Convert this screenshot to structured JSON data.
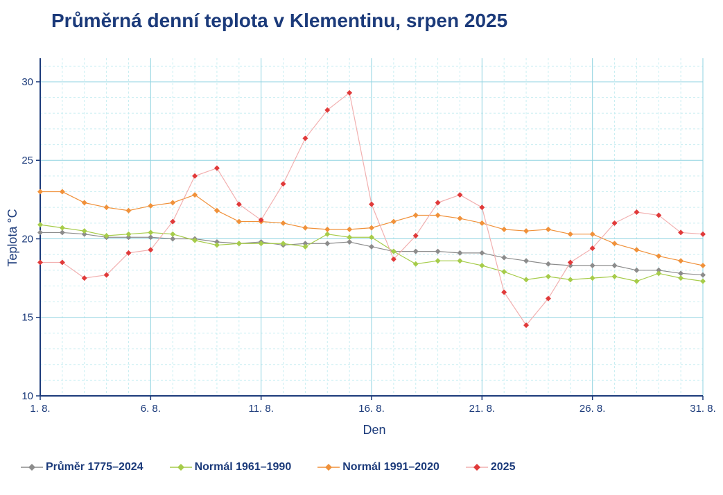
{
  "title": "Průměrná denní teplota v Klementinu, srpen 2025",
  "colors": {
    "title": "#1b3a7a",
    "axis": "#1b3a7a",
    "grid_major": "#8fd3e0",
    "grid_minor": "#c9eef2",
    "prumer": "#8c8c8c",
    "normal6190": "#a6cc4a",
    "normal9120": "#f0913a",
    "y2025": "#e03a3a",
    "y2025_line": "#f2b0b0"
  },
  "chart_data": {
    "type": "line",
    "title": "Průměrná denní teplota v Klementinu, srpen 2025",
    "xlabel": "Den",
    "ylabel": "Teplota  °C",
    "xlim": [
      1,
      31
    ],
    "ylim": [
      10,
      31.5
    ],
    "x_ticks": [
      1,
      6,
      11,
      16,
      21,
      26,
      31
    ],
    "x_tick_labels": [
      "1. 8.",
      "6. 8.",
      "11. 8.",
      "16. 8.",
      "21. 8.",
      "26. 8.",
      "31. 8."
    ],
    "y_ticks": [
      10,
      15,
      20,
      25,
      30
    ],
    "y_tick_labels": [
      "10",
      "15",
      "20",
      "25",
      "30"
    ],
    "legend_position": "bottom",
    "x": [
      1,
      2,
      3,
      4,
      5,
      6,
      7,
      8,
      9,
      10,
      11,
      12,
      13,
      14,
      15,
      16,
      17,
      18,
      19,
      20,
      21,
      22,
      23,
      24,
      25,
      26,
      27,
      28,
      29,
      30,
      31
    ],
    "series": [
      {
        "name": "Průměr 1775–2024",
        "key": "prumer",
        "values": [
          20.4,
          20.4,
          20.3,
          20.1,
          20.1,
          20.1,
          20.0,
          20.0,
          19.8,
          19.7,
          19.8,
          19.6,
          19.7,
          19.7,
          19.8,
          19.5,
          19.2,
          19.2,
          19.2,
          19.1,
          19.1,
          18.8,
          18.6,
          18.4,
          18.3,
          18.3,
          18.3,
          18.0,
          18.0,
          17.8,
          17.7
        ]
      },
      {
        "name": "Normál 1961–1990",
        "key": "normal6190",
        "values": [
          20.9,
          20.7,
          20.5,
          20.2,
          20.3,
          20.4,
          20.3,
          19.9,
          19.6,
          19.7,
          19.7,
          19.7,
          19.5,
          20.3,
          20.1,
          20.1,
          19.2,
          18.4,
          18.6,
          18.6,
          18.3,
          17.9,
          17.4,
          17.6,
          17.4,
          17.5,
          17.6,
          17.3,
          17.8,
          17.5,
          17.3
        ]
      },
      {
        "name": "Normál 1991–2020",
        "key": "normal9120",
        "values": [
          23.0,
          23.0,
          22.3,
          22.0,
          21.8,
          22.1,
          22.3,
          22.8,
          21.8,
          21.1,
          21.1,
          21.0,
          20.7,
          20.6,
          20.6,
          20.7,
          21.1,
          21.5,
          21.5,
          21.3,
          21.0,
          20.6,
          20.5,
          20.6,
          20.3,
          20.3,
          19.7,
          19.3,
          18.9,
          18.6,
          18.3
        ]
      },
      {
        "name": "2025",
        "key": "y2025",
        "values": [
          18.5,
          18.5,
          17.5,
          17.7,
          19.1,
          19.3,
          21.1,
          24.0,
          24.5,
          22.2,
          21.2,
          23.5,
          26.4,
          28.2,
          29.3,
          22.2,
          18.7,
          20.2,
          22.3,
          22.8,
          22.0,
          16.6,
          14.5,
          16.2,
          18.5,
          19.4,
          21.0,
          21.7,
          21.5,
          20.4,
          20.3
        ]
      }
    ]
  }
}
